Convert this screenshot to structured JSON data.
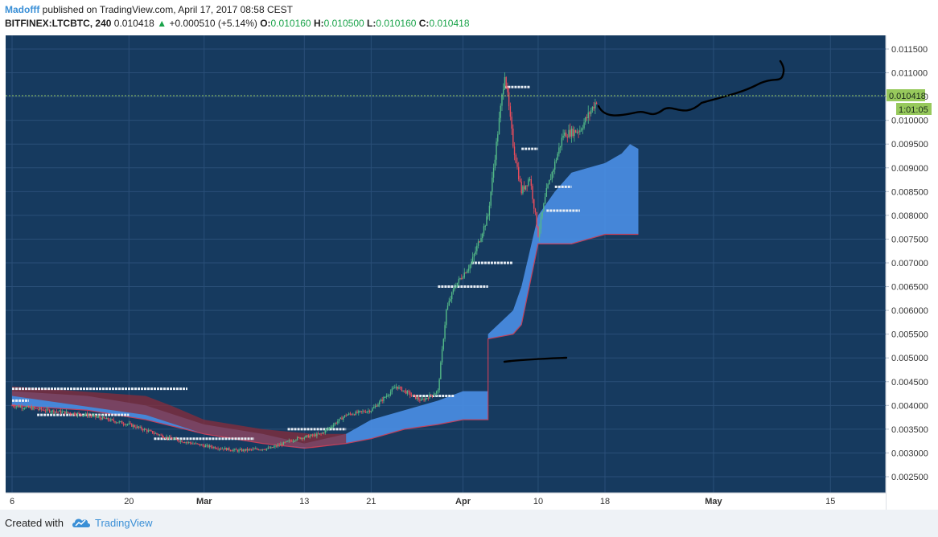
{
  "header": {
    "author": "Madofff",
    "published": "published on TradingView.com, April 17, 2017 08:58 CEST",
    "symbol": "BITFINEX:LTCBTC, 240",
    "last": "0.010418",
    "change_arrow": "▲",
    "change": "+0.000510 (+5.14%)",
    "o_label": "O:",
    "o_val": "0.010160",
    "h_label": "H:",
    "h_val": "0.010500",
    "l_label": "L:",
    "l_val": "0.010160",
    "c_label": "C:",
    "c_val": "0.010418"
  },
  "footer": {
    "created": "Created with",
    "brand": "TradingView",
    "logo_icon": "tradingview-cloud-icon"
  },
  "colors": {
    "background": "#163a5f",
    "cloud_blue": "#4a8fe6",
    "cloud_red": "#8a2c3a",
    "candle_up": "#53b987",
    "candle_down": "#eb4d5c",
    "last_price_tag": "#97c95c"
  },
  "chart_data": {
    "type": "candlestick",
    "symbol": "BITFINEX:LTCBTC",
    "interval": "240",
    "y_ticks": [
      "0.011500",
      "0.011000",
      "0.010500",
      "0.010000",
      "0.009500",
      "0.009000",
      "0.008500",
      "0.008000",
      "0.007500",
      "0.007000",
      "0.006500",
      "0.006000",
      "0.005500",
      "0.005000",
      "0.004500",
      "0.004000",
      "0.003500",
      "0.003000",
      "0.002500"
    ],
    "x_ticks": [
      "6",
      "20",
      "Mar",
      "13",
      "21",
      "Apr",
      "10",
      "18",
      "May",
      "15"
    ],
    "ylim": [
      0.0023,
      0.0118
    ],
    "last_price_label": "0.010418",
    "countdown_label": "1:01:05",
    "price_path": [
      [
        "Feb 6",
        0.004
      ],
      [
        "Feb 10",
        0.0039
      ],
      [
        "Feb 15",
        0.0038
      ],
      [
        "Feb 20",
        0.0036
      ],
      [
        "Feb 25",
        0.0033
      ],
      [
        "Mar 1",
        0.00315
      ],
      [
        "Mar 5",
        0.00305
      ],
      [
        "Mar 9",
        0.0031
      ],
      [
        "Mar 12",
        0.0033
      ],
      [
        "Mar 15",
        0.0034
      ],
      [
        "Mar 18",
        0.0038
      ],
      [
        "Mar 21",
        0.0039
      ],
      [
        "Mar 24",
        0.0044
      ],
      [
        "Mar 27",
        0.0041
      ],
      [
        "Mar 29",
        0.0043
      ],
      [
        "Mar 30",
        0.006
      ],
      [
        "Mar 31",
        0.0065
      ],
      [
        "Apr 2",
        0.007
      ],
      [
        "Apr 4",
        0.008
      ],
      [
        "Apr 6",
        0.011
      ],
      [
        "Apr 7",
        0.0095
      ],
      [
        "Apr 8",
        0.0085
      ],
      [
        "Apr 9",
        0.0088
      ],
      [
        "Apr 10",
        0.0076
      ],
      [
        "Apr 11",
        0.0085
      ],
      [
        "Apr 13",
        0.0097
      ],
      [
        "Apr 15",
        0.0098
      ],
      [
        "Apr 17",
        0.010418
      ]
    ],
    "cloud_top": [
      [
        "Feb 6",
        0.0043
      ],
      [
        "Feb 15",
        0.0042
      ],
      [
        "Feb 22",
        0.004
      ],
      [
        "Mar 1",
        0.0036
      ],
      [
        "Mar 8",
        0.0034
      ],
      [
        "Mar 13",
        0.0032
      ],
      [
        "Mar 18",
        0.0034
      ],
      [
        "Mar 21",
        0.0037
      ],
      [
        "Mar 25",
        0.0039
      ],
      [
        "Mar 29",
        0.0041
      ],
      [
        "Apr 1",
        0.0043
      ],
      [
        "Apr 4",
        0.0043
      ],
      [
        "Apr 4",
        0.0055
      ],
      [
        "Apr 7",
        0.006
      ],
      [
        "Apr 8",
        0.0065
      ],
      [
        "Apr 10",
        0.008
      ],
      [
        "Apr 12",
        0.0085
      ],
      [
        "Apr 14",
        0.0089
      ],
      [
        "Apr 16",
        0.009
      ],
      [
        "Apr 18",
        0.0091
      ],
      [
        "Apr 20",
        0.0093
      ],
      [
        "Apr 21",
        0.0095
      ],
      [
        "Apr 22",
        0.0094
      ]
    ],
    "cloud_bottom": [
      [
        "Feb 6",
        0.004
      ],
      [
        "Feb 15",
        0.0039
      ],
      [
        "Feb 22",
        0.0037
      ],
      [
        "Mar 1",
        0.0034
      ],
      [
        "Mar 8",
        0.0032
      ],
      [
        "Mar 13",
        0.0031
      ],
      [
        "Mar 18",
        0.0032
      ],
      [
        "Mar 21",
        0.0033
      ],
      [
        "Mar 25",
        0.0035
      ],
      [
        "Mar 29",
        0.0036
      ],
      [
        "Apr 1",
        0.0037
      ],
      [
        "Apr 4",
        0.0037
      ],
      [
        "Apr 4",
        0.0054
      ],
      [
        "Apr 7",
        0.0055
      ],
      [
        "Apr 8",
        0.0057
      ],
      [
        "Apr 10",
        0.0074
      ],
      [
        "Apr 14",
        0.0074
      ],
      [
        "Apr 16",
        0.0075
      ],
      [
        "Apr 18",
        0.0076
      ],
      [
        "Apr 22",
        0.0076
      ]
    ],
    "horizontal_levels": [
      [
        "Feb 6",
        "Feb 27",
        0.00435
      ],
      [
        "Feb 6",
        "Feb 8",
        0.0041
      ],
      [
        "Feb 9",
        "Feb 20",
        0.0038
      ],
      [
        "Feb 23",
        "Mar 7",
        0.0033
      ],
      [
        "Mar 11",
        "Mar 18",
        0.0035
      ],
      [
        "Mar 26",
        "Mar 31",
        0.0042
      ],
      [
        "Mar 29",
        "Apr 4",
        0.0065
      ],
      [
        "Apr 2",
        "Apr 7",
        0.007
      ],
      [
        "Apr 6",
        "Apr 9",
        0.0107
      ],
      [
        "Apr 8",
        "Apr 10",
        0.0094
      ],
      [
        "Apr 12",
        "Apr 14",
        0.0086
      ],
      [
        "Apr 11",
        "Apr 15",
        0.0081
      ]
    ]
  }
}
